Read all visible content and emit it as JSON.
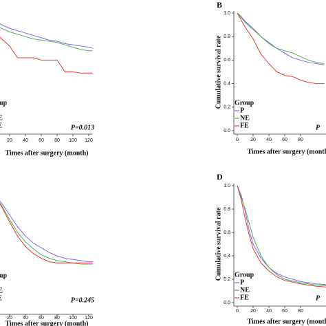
{
  "chart_data": [
    {
      "type": "line",
      "xlabel": "Times after surgery (month)",
      "xlim": [
        0,
        125
      ],
      "ylim": [
        0,
        1
      ],
      "xticks": [
        20,
        40,
        60,
        80,
        100,
        120
      ],
      "legend_title": "Group",
      "annotation": "P=0.013",
      "x": [
        0,
        10,
        20,
        30,
        40,
        50,
        60,
        70,
        80,
        90,
        100,
        110,
        120,
        125
      ],
      "series": [
        {
          "name": "P",
          "color": "#7b68ee",
          "values": [
            0.93,
            0.9,
            0.87,
            0.85,
            0.83,
            0.81,
            0.79,
            0.77,
            0.76,
            0.74,
            0.73,
            0.72,
            0.71,
            0.7
          ]
        },
        {
          "name": "NE",
          "color": "#4caf50",
          "values": [
            0.9,
            0.87,
            0.84,
            0.82,
            0.8,
            0.78,
            0.77,
            0.76,
            0.75,
            0.73,
            0.71,
            0.69,
            0.68,
            0.68
          ]
        },
        {
          "name": "FE",
          "color": "#e53935",
          "values": [
            0.85,
            0.78,
            0.72,
            0.62,
            0.62,
            0.62,
            0.6,
            0.6,
            0.6,
            0.5,
            0.5,
            0.49,
            0.49,
            0.49
          ]
        }
      ]
    },
    {
      "type": "line",
      "panel_label": "B",
      "ylabel": "Cumulative survival rate",
      "xlabel": "Times after surgery (month)",
      "xlim": [
        0,
        125
      ],
      "ylim": [
        0,
        1
      ],
      "xticks": [
        0,
        20,
        40,
        60,
        80
      ],
      "yticks": [
        {
          "value": 0,
          "label": "0.0"
        },
        0.2,
        0.4,
        0.6,
        0.8,
        {
          "value": 1,
          "label": "1.0"
        }
      ],
      "legend_title": "Group",
      "annotation": "P",
      "x": [
        0,
        5,
        10,
        20,
        30,
        40,
        50,
        60,
        70,
        80,
        90,
        100,
        110
      ],
      "series": [
        {
          "name": "P",
          "color": "#7b68ee",
          "values": [
            1,
            0.97,
            0.93,
            0.87,
            0.8,
            0.75,
            0.7,
            0.66,
            0.62,
            0.6,
            0.58,
            0.57,
            0.56
          ]
        },
        {
          "name": "NE",
          "color": "#4caf50",
          "values": [
            1,
            0.96,
            0.92,
            0.86,
            0.8,
            0.74,
            0.7,
            0.68,
            0.66,
            0.63,
            0.6,
            0.58,
            0.57
          ]
        },
        {
          "name": "FE",
          "color": "#e53935",
          "values": [
            1,
            0.94,
            0.88,
            0.78,
            0.65,
            0.57,
            0.5,
            0.47,
            0.46,
            0.43,
            0.41,
            0.4,
            0.4
          ]
        }
      ]
    },
    {
      "type": "line",
      "xlabel": "Times after surgery (month)",
      "xlim": [
        0,
        125
      ],
      "ylim": [
        0,
        1
      ],
      "xticks": [
        20,
        40,
        60,
        80,
        100,
        120
      ],
      "legend_title": "Group",
      "annotation": "P=0.245",
      "x": [
        0,
        10,
        20,
        30,
        40,
        50,
        60,
        70,
        80,
        90,
        100,
        110,
        120,
        125
      ],
      "series": [
        {
          "name": "P",
          "color": "#7b68ee",
          "values": [
            1,
            0.92,
            0.82,
            0.72,
            0.64,
            0.58,
            0.54,
            0.5,
            0.47,
            0.45,
            0.44,
            0.43,
            0.42,
            0.42
          ]
        },
        {
          "name": "NE",
          "color": "#4caf50",
          "values": [
            1,
            0.9,
            0.78,
            0.67,
            0.59,
            0.53,
            0.48,
            0.45,
            0.43,
            0.42,
            0.41,
            0.4,
            0.4,
            0.4
          ]
        },
        {
          "name": "FE",
          "color": "#e53935",
          "values": [
            1,
            0.89,
            0.76,
            0.64,
            0.55,
            0.49,
            0.45,
            0.42,
            0.41,
            0.41,
            0.41,
            0.41,
            0.41,
            0.41
          ]
        }
      ]
    },
    {
      "type": "line",
      "panel_label": "D",
      "ylabel": "Cumulative survival rate",
      "xlabel": "Times after surgery (month)",
      "xlim": [
        0,
        125
      ],
      "ylim": [
        0,
        1
      ],
      "xticks": [
        0,
        20,
        40,
        60,
        80
      ],
      "yticks": [
        {
          "value": 0,
          "label": "0.0"
        },
        0.2,
        0.4,
        0.6,
        0.8,
        {
          "value": 1,
          "label": "1.0"
        }
      ],
      "legend_title": "Group",
      "annotation": "P",
      "x": [
        0,
        5,
        10,
        15,
        20,
        30,
        40,
        50,
        60,
        80,
        100,
        120
      ],
      "series": [
        {
          "name": "P",
          "color": "#7b68ee",
          "values": [
            1,
            0.92,
            0.78,
            0.62,
            0.5,
            0.38,
            0.3,
            0.25,
            0.22,
            0.18,
            0.16,
            0.15
          ]
        },
        {
          "name": "NE",
          "color": "#4caf50",
          "values": [
            1,
            0.9,
            0.8,
            0.68,
            0.56,
            0.4,
            0.3,
            0.24,
            0.2,
            0.17,
            0.15,
            0.14
          ]
        },
        {
          "name": "FE",
          "color": "#e53935",
          "values": [
            1,
            0.88,
            0.72,
            0.58,
            0.46,
            0.34,
            0.27,
            0.22,
            0.19,
            0.16,
            0.14,
            0.13
          ]
        }
      ]
    }
  ]
}
